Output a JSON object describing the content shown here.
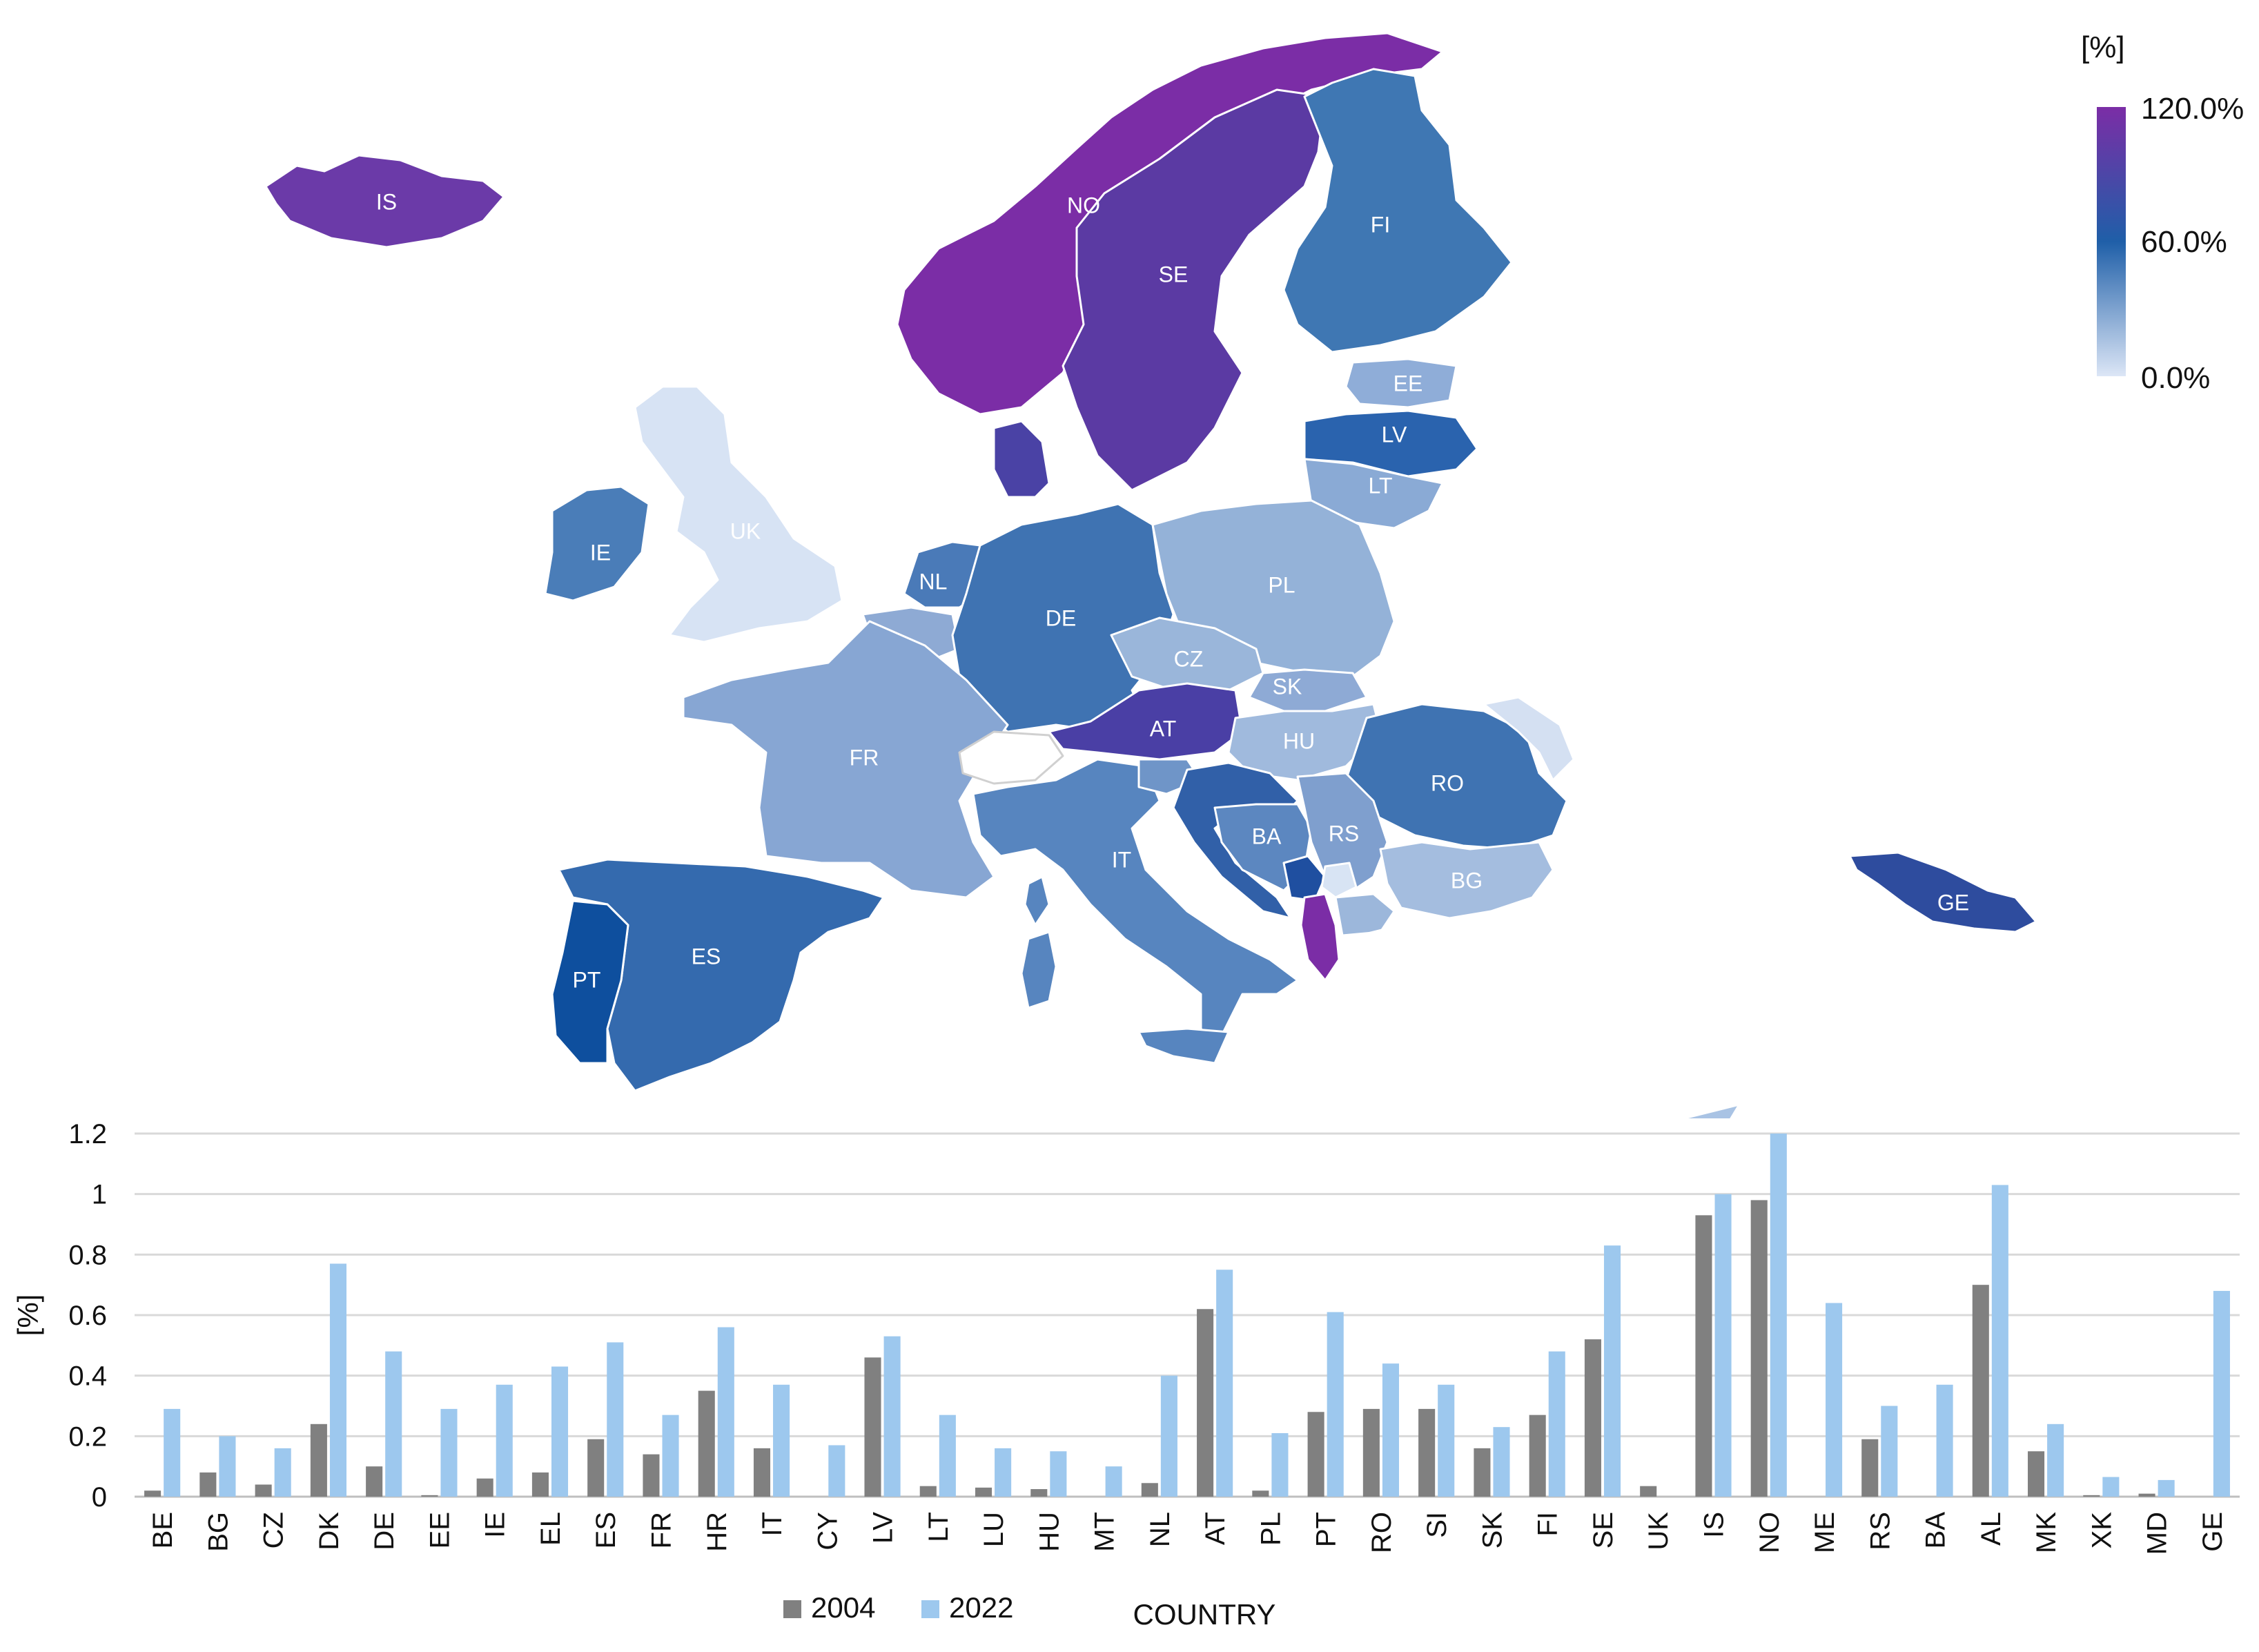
{
  "map": {
    "legend": {
      "unit": "[%]",
      "max_label": "120.0%",
      "mid_label": "60.0%",
      "min_label": "0.0%",
      "colors": {
        "max": "#7B2DA6",
        "mid": "#1F5FA8",
        "min": "#DCE6F6"
      }
    },
    "country_labels": {
      "IS": "IS",
      "NO": "NO",
      "SE": "SE",
      "FI": "FI",
      "EE": "EE",
      "LV": "LV",
      "LT": "LT",
      "UK": "UK",
      "IE": "IE",
      "NL": "NL",
      "DE": "DE",
      "PL": "PL",
      "CZ": "CZ",
      "SK": "SK",
      "AT": "AT",
      "HU": "HU",
      "RO": "RO",
      "FR": "FR",
      "IT": "IT",
      "BA": "BA",
      "RS": "RS",
      "BG": "BG",
      "GE": "GE",
      "ES": "ES",
      "PT": "PT"
    }
  },
  "chart_data": {
    "type": "bar",
    "categories": [
      "BE",
      "BG",
      "CZ",
      "DK",
      "DE",
      "EE",
      "IE",
      "EL",
      "ES",
      "FR",
      "HR",
      "IT",
      "CY",
      "LV",
      "LT",
      "LU",
      "HU",
      "MT",
      "NL",
      "AT",
      "PL",
      "PT",
      "RO",
      "SI",
      "SK",
      "FI",
      "SE",
      "UK",
      "IS",
      "NO",
      "ME",
      "RS",
      "BA",
      "AL",
      "MK",
      "XK",
      "MD",
      "GE"
    ],
    "series": [
      {
        "name": "2004",
        "color": "#808080",
        "values": [
          0.02,
          0.08,
          0.04,
          0.24,
          0.1,
          0.005,
          0.06,
          0.08,
          0.19,
          0.14,
          0.35,
          0.16,
          0,
          0.46,
          0.035,
          0.03,
          0.025,
          0,
          0.045,
          0.62,
          0.02,
          0.28,
          0.29,
          0.29,
          0.16,
          0.27,
          0.52,
          0.035,
          0.93,
          0.98,
          0,
          0.19,
          0,
          0.7,
          0.15,
          0.005,
          0.01,
          0
        ]
      },
      {
        "name": "2022",
        "color": "#9DC8EE",
        "values": [
          0.29,
          0.2,
          0.16,
          0.77,
          0.48,
          0.29,
          0.37,
          0.43,
          0.51,
          0.27,
          0.56,
          0.37,
          0.17,
          0.53,
          0.27,
          0.16,
          0.15,
          0.1,
          0.4,
          0.75,
          0.21,
          0.61,
          0.44,
          0.37,
          0.23,
          0.48,
          0.83,
          0,
          1.0,
          1.2,
          0.64,
          0.3,
          0.37,
          1.03,
          0.24,
          0.065,
          0.055,
          0.68
        ]
      }
    ],
    "yticks": [
      "0",
      "0.2",
      "0.4",
      "0.6",
      "0.8",
      "1",
      "1.2"
    ],
    "ylim": [
      0,
      1.2
    ],
    "ylabel": "[%]",
    "xlabel": "COUNTRY",
    "grid": true,
    "legend_position": "bottom"
  }
}
